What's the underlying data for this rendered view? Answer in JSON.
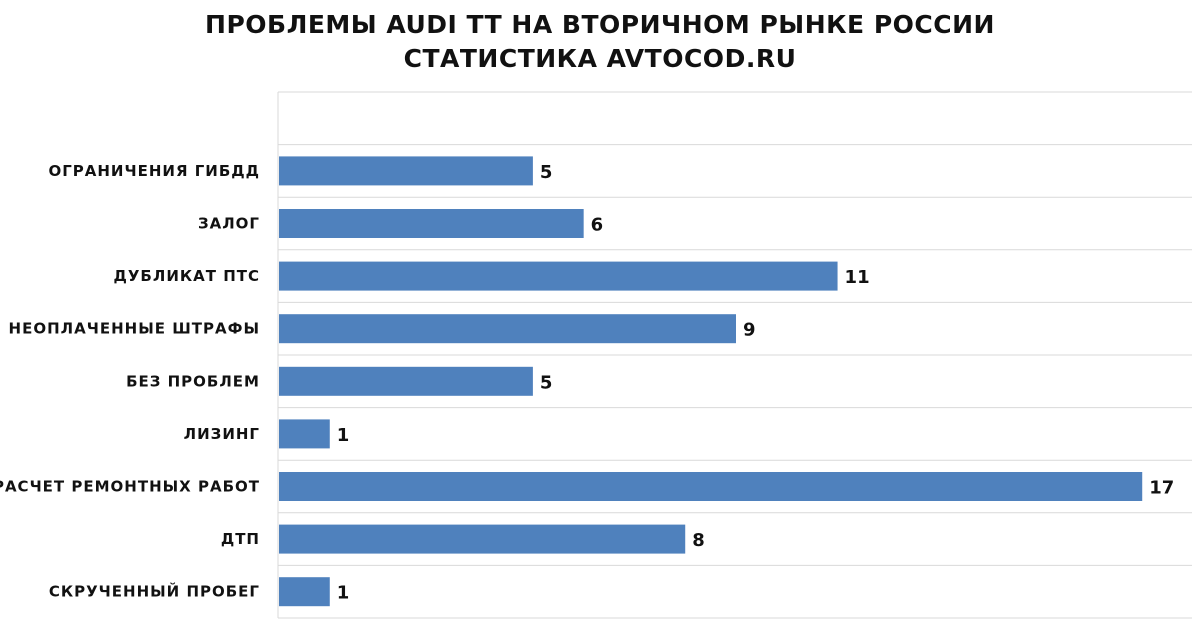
{
  "chart_data": {
    "type": "bar",
    "orientation": "horizontal",
    "title": "ПРОБЛЕМЫ AUDI TT НА ВТОРИЧНОМ РЫНКЕ РОССИИ",
    "subtitle": "СТАТИСТИКА AVTOCOD.RU",
    "categories": [
      "",
      "ОГРАНИЧЕНИЯ ГИБДД",
      "ЗАЛОГ",
      "ДУБЛИКАТ ПТС",
      "НЕОПЛАЧЕННЫЕ ШТРАФЫ",
      "БЕЗ ПРОБЛЕМ",
      "ЛИЗИНГ",
      "РАСЧЕТ РЕМОНТНЫХ РАБОТ",
      "ДТП",
      "СКРУЧЕННЫЙ ПРОБЕГ"
    ],
    "values": [
      null,
      5,
      6,
      11,
      9,
      5,
      1,
      17,
      8,
      1
    ],
    "xlim": [
      0,
      18
    ],
    "grid": "horizontal",
    "legend": "none",
    "bar_color": "#4F81BD",
    "grid_color": "#D9D9D9"
  }
}
